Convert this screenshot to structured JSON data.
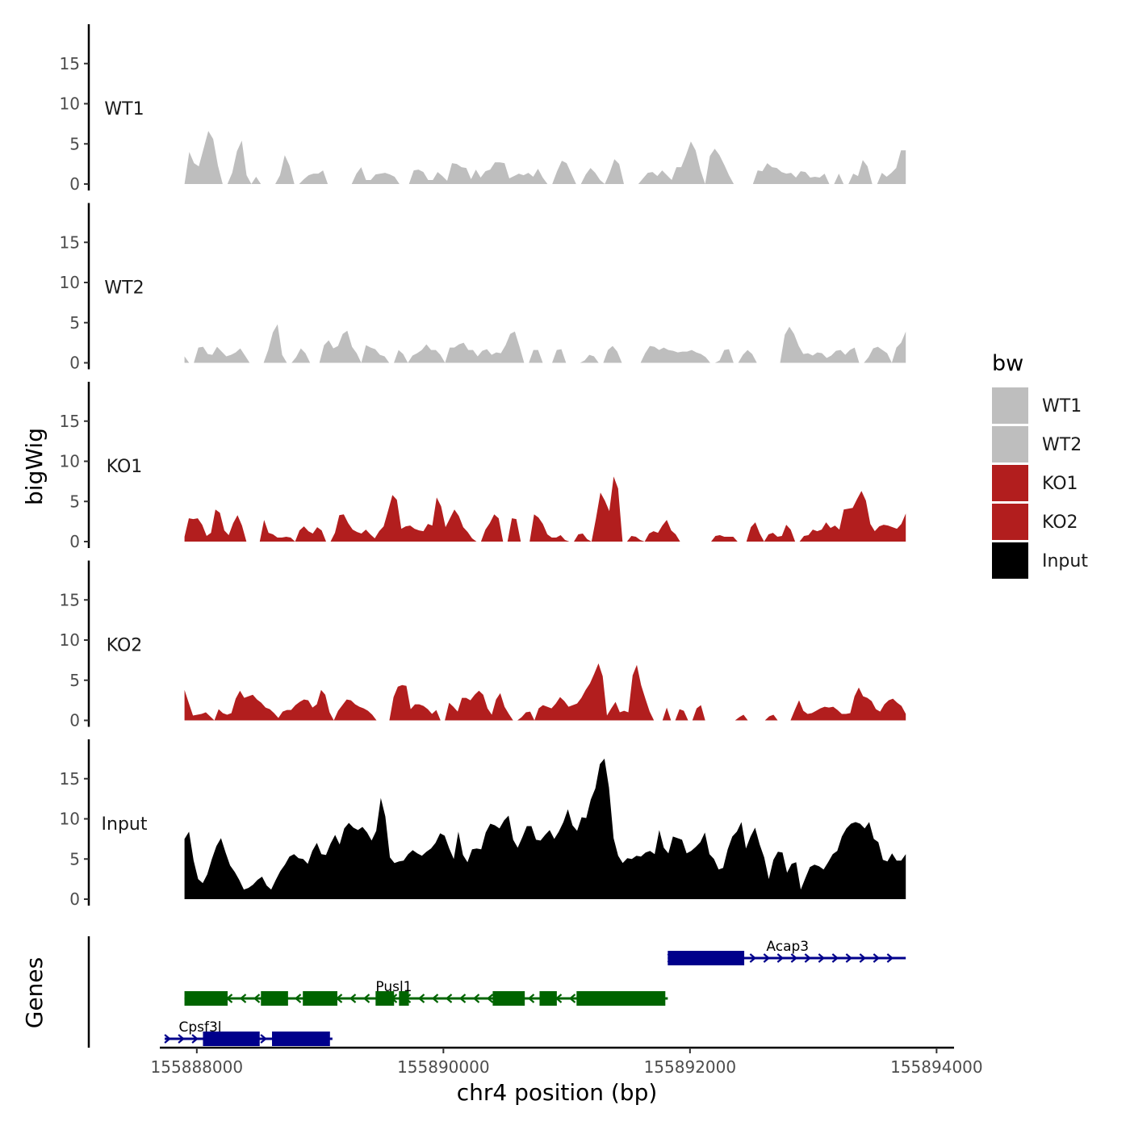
{
  "chart_data": {
    "type": "area",
    "xlabel": "chr4 position (bp)",
    "ylabel": "bigWig",
    "genes_label": "Genes",
    "xlim": [
      155887700,
      155894050
    ],
    "xticks": [
      155888000,
      155890000,
      155892000,
      155894000
    ],
    "xtick_labels": [
      "155888000",
      "155890000",
      "155892000",
      "155894000"
    ],
    "ylim": [
      0,
      19.5
    ],
    "yticks": [
      0,
      5,
      10,
      15
    ],
    "ytick_labels": [
      "0",
      "5",
      "10",
      "15"
    ],
    "region": [
      155887900,
      155893750
    ],
    "series": [
      {
        "name": "WT1",
        "color": "#bebebe",
        "values": [
          0.0,
          4.0,
          2.6,
          2.2,
          4.4,
          6.6,
          5.6,
          2.3,
          0.0,
          0.0,
          1.4,
          4.1,
          5.4,
          1.1,
          0.0,
          0.9,
          0.0,
          0.0,
          0.0,
          0.0,
          1.1,
          3.6,
          2.3,
          0.0,
          0.0,
          0.6,
          1.1,
          1.3,
          1.3,
          1.7,
          0.0,
          0.0,
          0.0,
          0.0,
          0.0,
          0.0,
          1.3,
          2.1,
          0.5,
          0.5,
          1.2,
          1.3,
          1.4,
          1.2,
          0.9,
          0.0,
          0.0,
          0.0,
          1.7,
          1.8,
          1.5,
          0.5,
          0.5,
          1.5,
          1.0,
          0.4,
          2.6,
          2.5,
          2.1,
          2.0,
          0.6,
          1.8,
          0.8,
          1.6,
          1.8,
          2.7,
          2.7,
          2.6,
          0.7,
          1.0,
          1.3,
          1.1,
          1.4,
          0.9,
          1.9,
          0.8,
          0.0,
          0.0,
          1.6,
          2.9,
          2.6,
          1.3,
          0.0,
          0.0,
          1.2,
          2.0,
          1.4,
          0.5,
          0.0,
          1.4,
          3.1,
          2.5,
          0.0,
          0.0,
          0.0,
          0.0,
          0.7,
          1.4,
          1.5,
          1.0,
          1.7,
          1.1,
          0.5,
          2.1,
          2.1,
          3.6,
          5.3,
          4.2,
          1.8,
          0.0,
          3.5,
          4.4,
          3.6,
          2.4,
          1.1,
          0.0,
          0.0,
          0.0,
          0.0,
          0.0,
          1.7,
          1.6,
          2.6,
          2.1,
          2.0,
          1.5,
          1.3,
          1.4,
          0.8,
          1.6,
          1.5,
          0.8,
          0.9,
          0.8,
          1.3,
          0.0,
          0.0,
          1.3,
          0.0,
          0.0,
          1.3,
          1.0,
          3.0,
          2.2,
          0.0,
          0.0,
          1.4,
          0.9,
          1.4,
          2.0,
          4.2,
          4.2
        ]
      },
      {
        "name": "WT2",
        "color": "#bebebe",
        "values": [
          0.8,
          0.0,
          0.0,
          1.9,
          2.0,
          1.1,
          1.0,
          2.0,
          1.4,
          0.8,
          1.0,
          1.3,
          1.8,
          0.9,
          0.0,
          0.0,
          0.0,
          0.0,
          1.6,
          3.8,
          4.8,
          1.0,
          0.0,
          0.0,
          0.7,
          1.8,
          1.2,
          0.0,
          0.0,
          0.0,
          2.2,
          2.8,
          1.8,
          2.1,
          3.6,
          4.0,
          2.0,
          1.2,
          0.0,
          2.2,
          1.9,
          1.7,
          1.0,
          0.8,
          0.0,
          0.0,
          1.6,
          1.1,
          0.0,
          0.9,
          1.2,
          1.6,
          2.3,
          1.6,
          1.6,
          1.0,
          0.0,
          1.9,
          1.9,
          2.3,
          2.5,
          1.6,
          1.6,
          0.8,
          1.5,
          1.7,
          1.0,
          1.3,
          1.2,
          2.2,
          3.6,
          3.9,
          2.0,
          0.0,
          0.0,
          1.6,
          1.6,
          0.0,
          0.0,
          0.0,
          1.6,
          1.7,
          0.0,
          0.0,
          0.0,
          0.0,
          0.3,
          1.0,
          0.8,
          0.0,
          0.0,
          1.6,
          2.1,
          1.4,
          0.0,
          0.0,
          0.0,
          0.0,
          0.0,
          1.2,
          2.1,
          2.0,
          1.6,
          1.9,
          1.6,
          1.5,
          1.3,
          1.4,
          1.4,
          1.6,
          1.3,
          1.1,
          0.7,
          0.0,
          0.0,
          0.3,
          1.6,
          1.7,
          0.0,
          0.0,
          1.0,
          1.6,
          1.1,
          0.0,
          0.0,
          0.0,
          0.0,
          0.0,
          0.0,
          3.5,
          4.5,
          3.6,
          2.1,
          1.1,
          1.2,
          0.9,
          1.3,
          1.2,
          0.6,
          0.9,
          1.5,
          1.6,
          1.0,
          1.6,
          1.9,
          0.0,
          0.0,
          0.7,
          1.8,
          2.0,
          1.6,
          1.2,
          0.0,
          1.9,
          2.5,
          3.9
        ]
      },
      {
        "name": "KO1",
        "color": "#b21e1e",
        "values": [
          0.6,
          2.9,
          2.8,
          2.9,
          2.1,
          0.7,
          1.1,
          4.0,
          3.6,
          1.4,
          0.8,
          2.3,
          3.3,
          2.0,
          0.0,
          0.0,
          0.0,
          0.0,
          2.7,
          1.1,
          0.9,
          0.5,
          0.5,
          0.6,
          0.5,
          0.0,
          1.4,
          1.9,
          1.3,
          1.0,
          1.8,
          1.4,
          0.0,
          0.0,
          1.1,
          3.3,
          3.4,
          2.3,
          1.5,
          1.2,
          1.0,
          1.5,
          0.9,
          0.4,
          1.3,
          1.9,
          3.8,
          5.8,
          5.2,
          1.6,
          1.9,
          2.0,
          1.6,
          1.4,
          1.3,
          2.2,
          2.0,
          5.5,
          4.4,
          1.8,
          2.9,
          4.0,
          3.2,
          1.8,
          1.2,
          0.4,
          0.0,
          0.0,
          1.5,
          2.3,
          3.4,
          2.9,
          0.0,
          0.0,
          2.9,
          2.8,
          0.0,
          0.0,
          0.0,
          3.4,
          3.0,
          2.2,
          0.9,
          0.5,
          0.5,
          0.8,
          0.2,
          0.0,
          0.0,
          0.9,
          1.0,
          0.3,
          0.0,
          2.9,
          6.1,
          5.1,
          3.8,
          8.1,
          6.6,
          0.0,
          0.0,
          0.7,
          0.6,
          0.2,
          0.0,
          1.0,
          1.3,
          1.1,
          2.0,
          2.7,
          1.4,
          0.9,
          0.0,
          0.0,
          0.0,
          0.0,
          0.0,
          0.0,
          0.0,
          0.0,
          0.7,
          0.8,
          0.6,
          0.6,
          0.6,
          0.0,
          0.0,
          0.0,
          1.8,
          2.4,
          1.0,
          0.0,
          0.9,
          1.1,
          0.6,
          0.7,
          2.1,
          1.5,
          0.0,
          0.0,
          0.7,
          0.8,
          1.5,
          1.3,
          1.5,
          2.4,
          1.7,
          2.0,
          1.5,
          4.0,
          4.1,
          4.2,
          5.3,
          6.3,
          5.1,
          2.2,
          1.3,
          1.9,
          2.1,
          2.0,
          1.8,
          1.6,
          2.2,
          3.5
        ]
      },
      {
        "name": "KO2",
        "color": "#b21e1e",
        "values": [
          3.8,
          2.2,
          0.6,
          0.7,
          0.8,
          1.0,
          0.5,
          0.0,
          1.4,
          0.9,
          0.7,
          0.9,
          2.7,
          3.7,
          2.8,
          3.0,
          3.2,
          2.6,
          2.2,
          1.6,
          1.4,
          0.9,
          0.3,
          1.1,
          1.3,
          1.3,
          1.9,
          2.3,
          2.6,
          2.5,
          1.6,
          2.0,
          3.8,
          3.2,
          1.0,
          0.0,
          1.2,
          1.9,
          2.6,
          2.5,
          2.0,
          1.7,
          1.5,
          1.2,
          0.7,
          0.0,
          0.0,
          0.0,
          0.0,
          2.9,
          4.2,
          4.4,
          4.3,
          1.4,
          2.0,
          2.0,
          1.8,
          1.4,
          0.8,
          1.3,
          0.0,
          0.0,
          2.2,
          1.7,
          1.1,
          2.8,
          2.8,
          2.5,
          3.2,
          3.7,
          3.2,
          1.5,
          0.7,
          2.6,
          3.4,
          1.7,
          0.8,
          0.0,
          0.0,
          0.4,
          1.0,
          1.1,
          0.0,
          1.5,
          1.9,
          1.7,
          1.5,
          2.1,
          2.9,
          2.4,
          1.7,
          1.9,
          2.1,
          2.8,
          3.8,
          4.6,
          5.8,
          7.1,
          5.5,
          0.6,
          1.5,
          2.3,
          1.0,
          1.2,
          1.0,
          5.6,
          6.9,
          4.4,
          2.7,
          1.1,
          0.0,
          0.0,
          0.0,
          1.6,
          0.0,
          0.0,
          1.4,
          1.2,
          0.0,
          0.0,
          1.5,
          1.9,
          0.0,
          0.0,
          0.0,
          0.0,
          0.0,
          0.0,
          0.0,
          0.0,
          0.4,
          0.7,
          0.0,
          0.0,
          0.0,
          0.0,
          0.0,
          0.5,
          0.7,
          0.0,
          0.0,
          0.0,
          0.0,
          1.3,
          2.5,
          1.2,
          0.8,
          0.9,
          1.2,
          1.5,
          1.7,
          1.6,
          1.7,
          1.3,
          0.8,
          0.8,
          0.9,
          3.0,
          4.1,
          3.0,
          2.8,
          2.4,
          1.4,
          1.1,
          2.0,
          2.5,
          2.7,
          2.2,
          1.8,
          0.8
        ]
      },
      {
        "name": "Input",
        "color": "#000000",
        "values": [
          7.5,
          8.4,
          4.8,
          2.5,
          2.0,
          3.1,
          5.0,
          6.6,
          7.6,
          5.8,
          4.2,
          3.4,
          2.4,
          1.2,
          1.4,
          1.8,
          2.4,
          2.8,
          1.7,
          1.2,
          2.4,
          3.5,
          4.3,
          5.3,
          5.6,
          5.1,
          5.0,
          4.4,
          6.0,
          7.0,
          5.6,
          5.5,
          6.9,
          8.0,
          6.8,
          8.8,
          9.5,
          8.9,
          8.6,
          9.0,
          8.3,
          7.3,
          8.5,
          12.6,
          10.3,
          5.2,
          4.5,
          4.7,
          4.8,
          5.6,
          6.1,
          5.7,
          5.4,
          5.9,
          6.3,
          7.0,
          8.2,
          7.9,
          6.3,
          5.0,
          8.4,
          5.5,
          4.6,
          6.2,
          6.3,
          6.2,
          8.3,
          9.4,
          9.2,
          8.8,
          9.8,
          10.4,
          7.4,
          6.4,
          7.7,
          9.1,
          9.1,
          7.4,
          7.3,
          8.0,
          8.6,
          7.5,
          8.4,
          9.6,
          11.2,
          9.2,
          8.5,
          10.2,
          10.1,
          12.4,
          13.8,
          16.8,
          17.5,
          13.9,
          7.6,
          5.4,
          4.5,
          5.1,
          5.0,
          5.4,
          5.3,
          5.8,
          6.0,
          5.6,
          8.6,
          6.4,
          5.7,
          7.8,
          7.6,
          7.4,
          5.7,
          6.0,
          6.5,
          7.1,
          8.3,
          5.6,
          5.0,
          3.7,
          3.9,
          6.2,
          7.8,
          8.4,
          9.6,
          6.3,
          7.8,
          8.9,
          6.8,
          5.2,
          2.5,
          4.9,
          5.9,
          5.8,
          3.3,
          4.4,
          4.6,
          1.2,
          2.6,
          4.0,
          4.3,
          4.1,
          3.7,
          4.6,
          5.6,
          6.0,
          7.8,
          8.8,
          9.4,
          9.6,
          9.4,
          8.8,
          9.6,
          7.5,
          7.1,
          4.9,
          4.7,
          5.7,
          4.8,
          4.8,
          5.6
        ]
      }
    ],
    "genes": [
      {
        "name": "Acap3",
        "strand": "+",
        "color": "#00008b",
        "start": 155891820,
        "end": 155893750,
        "exons": [
          [
            155891820,
            155892440
          ]
        ]
      },
      {
        "name": "Pusl1",
        "strand": "-",
        "color": "#006400",
        "start": 155887900,
        "end": 155891820,
        "exons": [
          [
            155887900,
            155888250
          ],
          [
            155888520,
            155888740
          ],
          [
            155888860,
            155889140
          ],
          [
            155889450,
            155889600
          ],
          [
            155889640,
            155889720
          ],
          [
            155890400,
            155890660
          ],
          [
            155890780,
            155890920
          ],
          [
            155891080,
            155891800
          ]
        ]
      },
      {
        "name": "Cpsf3l",
        "strand": "+",
        "color": "#00008b",
        "start": 155887740,
        "end": 155889100,
        "exons": [
          [
            155888050,
            155888510
          ],
          [
            155888610,
            155889080
          ]
        ]
      }
    ],
    "legend": {
      "title": "bw",
      "position": "right",
      "entries": [
        {
          "label": "WT1",
          "color": "#bebebe"
        },
        {
          "label": "WT2",
          "color": "#bebebe"
        },
        {
          "label": "KO1",
          "color": "#b21e1e"
        },
        {
          "label": "KO2",
          "color": "#b21e1e"
        },
        {
          "label": "Input",
          "color": "#000000"
        }
      ]
    }
  }
}
